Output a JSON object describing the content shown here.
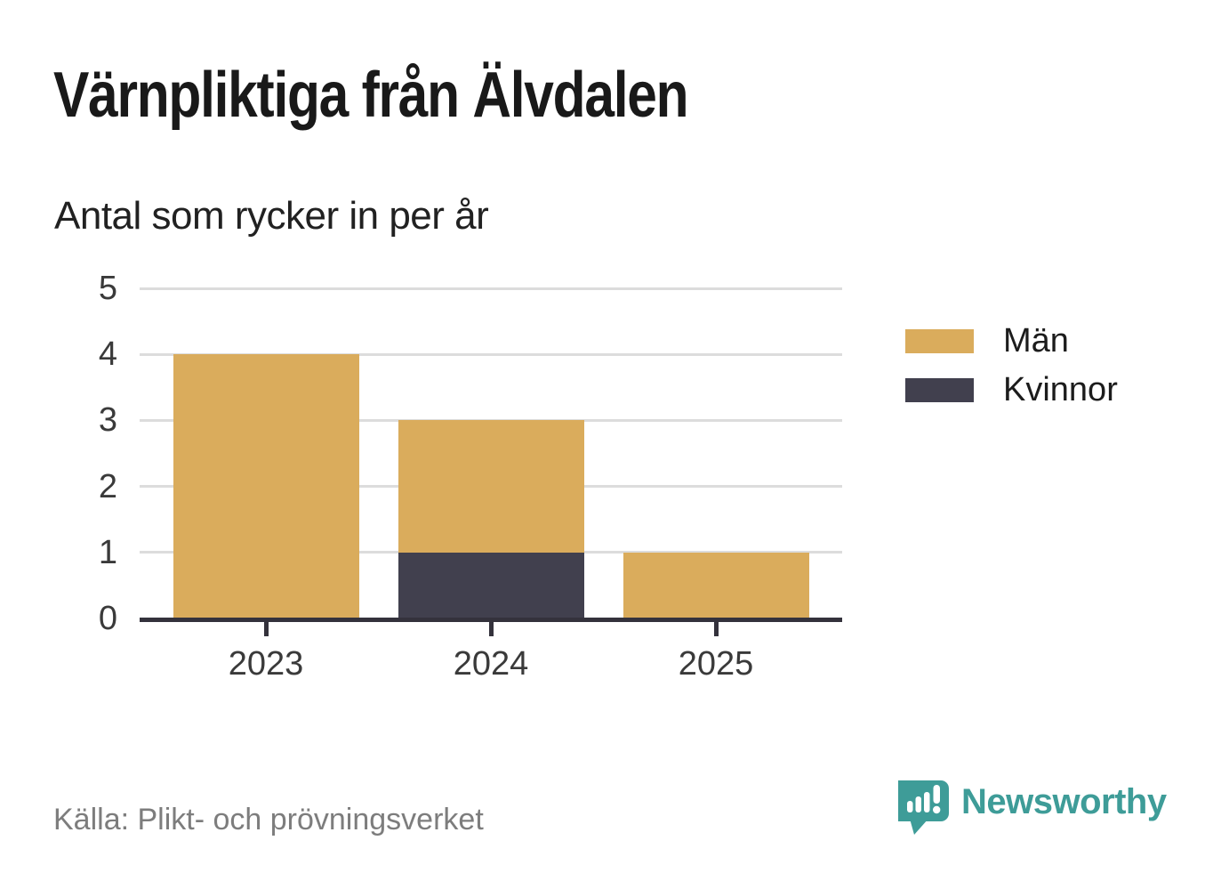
{
  "title": "Värnpliktiga från Älvdalen",
  "subtitle": "Antal som rycker in per år",
  "source": "Källa: Plikt- och prövningsverket",
  "brand": {
    "name": "Newsworthy",
    "color": "#3E9C98",
    "logo_icon": "bar-chart-speech-bubble-icon"
  },
  "colors": {
    "men": "#DAAC5C",
    "women": "#41404E",
    "axis": "#34323c",
    "gridline": "#dcdcdc",
    "tick_label": "#3a3a3a",
    "title_text": "#191919",
    "source_text": "#7d7d7d"
  },
  "chart_data": {
    "type": "bar",
    "stacked": true,
    "title": "Värnpliktiga från Älvdalen",
    "subtitle": "Antal som rycker in per år",
    "categories": [
      "2023",
      "2024",
      "2025"
    ],
    "series": [
      {
        "name": "Män",
        "color": "#DAAC5C",
        "values": [
          4,
          2,
          1
        ]
      },
      {
        "name": "Kvinnor",
        "color": "#41404E",
        "values": [
          0,
          1,
          0
        ]
      }
    ],
    "totals": [
      4,
      3,
      1
    ],
    "xlabel": "",
    "ylabel": "",
    "ylim": [
      0,
      5
    ],
    "yticks": [
      0,
      1,
      2,
      3,
      4,
      5
    ],
    "grid": "horizontal",
    "legend_position": "right"
  }
}
